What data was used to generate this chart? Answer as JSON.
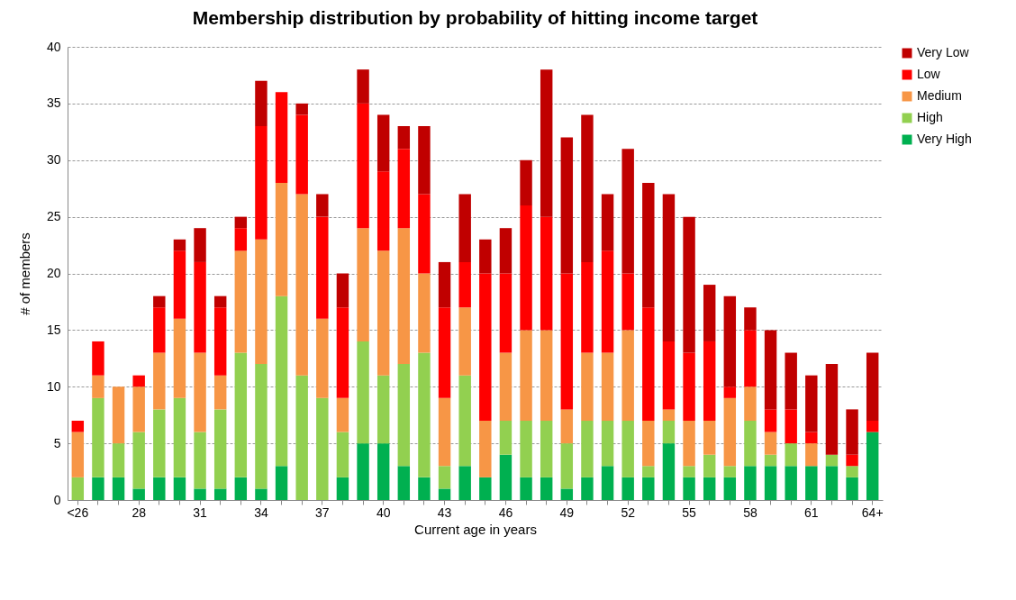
{
  "chart_data": {
    "type": "bar",
    "title": "Membership distribution by probability of hitting income target",
    "xlabel": "Current age in years",
    "ylabel": "# of members",
    "categories": [
      "<26",
      null,
      null,
      "28",
      null,
      null,
      "31",
      null,
      null,
      "34",
      null,
      null,
      "37",
      null,
      null,
      "40",
      null,
      null,
      "43",
      null,
      null,
      "46",
      null,
      null,
      "49",
      null,
      null,
      "52",
      null,
      null,
      "55",
      null,
      null,
      "58",
      null,
      null,
      "61",
      null,
      null,
      "64+"
    ],
    "stacked": true,
    "ylim": [
      0,
      40
    ],
    "yticks": [
      0,
      5,
      10,
      15,
      20,
      25,
      30,
      35,
      40
    ],
    "grid": "y",
    "legend": "right",
    "series": [
      {
        "name": "Very High",
        "color": "#00b050",
        "values": [
          0,
          2,
          2,
          1,
          2,
          2,
          1,
          1,
          2,
          1,
          3,
          0,
          0,
          2,
          5,
          5,
          3,
          2,
          1,
          3,
          2,
          4,
          2,
          2,
          1,
          2,
          3,
          2,
          2,
          5,
          2,
          2,
          2,
          3,
          3,
          3,
          3,
          3,
          2,
          6
        ]
      },
      {
        "name": "High",
        "color": "#92d050",
        "values": [
          2,
          7,
          3,
          5,
          6,
          7,
          5,
          7,
          11,
          11,
          15,
          11,
          9,
          4,
          9,
          6,
          9,
          11,
          2,
          8,
          0,
          3,
          5,
          5,
          4,
          5,
          4,
          5,
          1,
          2,
          1,
          2,
          1,
          4,
          1,
          2,
          0,
          1,
          1,
          0
        ]
      },
      {
        "name": "Medium",
        "color": "#f79646",
        "values": [
          4,
          2,
          5,
          4,
          5,
          7,
          7,
          3,
          9,
          11,
          10,
          16,
          7,
          3,
          10,
          11,
          12,
          7,
          6,
          6,
          5,
          6,
          8,
          8,
          3,
          6,
          6,
          8,
          4,
          1,
          4,
          3,
          6,
          3,
          2,
          0,
          2,
          0,
          0,
          0
        ]
      },
      {
        "name": "Low",
        "color": "#ff0000",
        "values": [
          1,
          3,
          0,
          1,
          4,
          6,
          8,
          6,
          2,
          10,
          8,
          7,
          9,
          8,
          11,
          7,
          7,
          7,
          8,
          4,
          13,
          7,
          11,
          10,
          12,
          8,
          9,
          5,
          10,
          6,
          6,
          7,
          1,
          5,
          2,
          3,
          1,
          0,
          1,
          1
        ]
      },
      {
        "name": "Very Low",
        "color": "#c00000",
        "values": [
          0,
          0,
          0,
          0,
          1,
          1,
          3,
          1,
          1,
          4,
          0,
          1,
          2,
          3,
          3,
          5,
          2,
          6,
          4,
          6,
          3,
          4,
          4,
          13,
          12,
          13,
          5,
          11,
          11,
          13,
          12,
          5,
          8,
          2,
          7,
          5,
          5,
          8,
          4,
          6
        ]
      }
    ]
  }
}
